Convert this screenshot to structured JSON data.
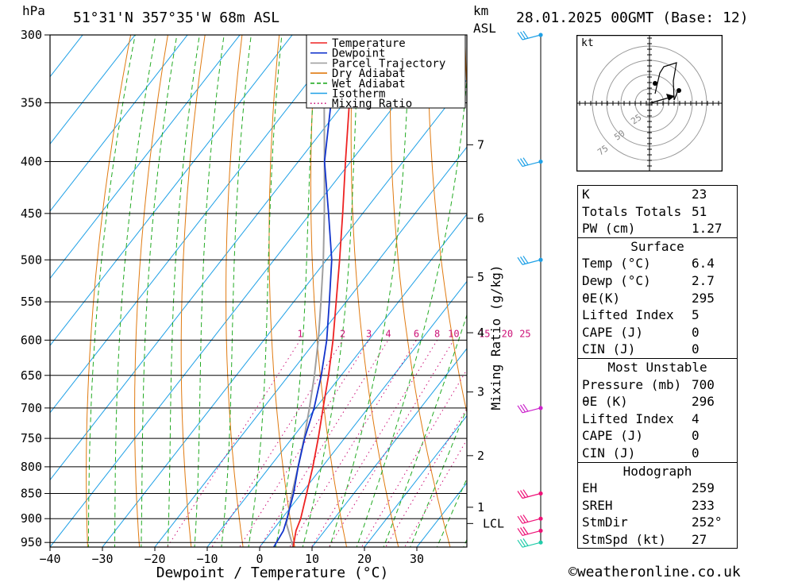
{
  "header": {
    "hpa_label": "hPa",
    "location": "51°31'N  357°35'W  68m  ASL",
    "km_label": "km",
    "asl_label": "ASL",
    "datetime": "28.01.2025  00GMT  (Base: 12)"
  },
  "chart_data": {
    "type": "line",
    "title": "Skew-T log-P diagram",
    "xlabel": "Dewpoint / Temperature (°C)",
    "ylabel": "hPa",
    "x_ticks": [
      -40,
      -30,
      -20,
      -10,
      0,
      10,
      20,
      30
    ],
    "xlim": [
      -40,
      40
    ],
    "ylim": [
      960,
      300
    ],
    "pressure_levels": [
      300,
      350,
      400,
      450,
      500,
      550,
      600,
      650,
      700,
      750,
      800,
      850,
      900,
      950
    ],
    "km_ticks": [
      {
        "label": "1",
        "p": 877
      },
      {
        "label": "2",
        "p": 780
      },
      {
        "label": "3",
        "p": 675
      },
      {
        "label": "4",
        "p": 590
      },
      {
        "label": "5",
        "p": 520
      },
      {
        "label": "6",
        "p": 455
      },
      {
        "label": "7",
        "p": 385
      }
    ],
    "lcl": {
      "label": "LCL",
      "p": 910
    },
    "mixing_ratio_axis_label": "Mixing Ratio (g/kg)",
    "mixing_ratios": [
      1,
      2,
      3,
      4,
      6,
      8,
      10,
      15,
      20,
      25
    ],
    "legend": [
      {
        "name": "Temperature",
        "color": "#ee2222"
      },
      {
        "name": "Dewpoint",
        "color": "#1133cc"
      },
      {
        "name": "Parcel Trajectory",
        "color": "#a0a0a0"
      },
      {
        "name": "Dry Adiabat",
        "color": "#e07a10"
      },
      {
        "name": "Wet Adiabat",
        "color": "#22aa22"
      },
      {
        "name": "Isotherm",
        "color": "#1ea0e6"
      },
      {
        "name": "Mixing Ratio",
        "color": "#cc1177"
      }
    ],
    "series": [
      {
        "name": "Temperature",
        "points": [
          [
            960,
            6.4
          ],
          [
            925,
            4.5
          ],
          [
            900,
            3.6
          ],
          [
            850,
            1.0
          ],
          [
            800,
            -1.8
          ],
          [
            750,
            -5.0
          ],
          [
            700,
            -8.6
          ],
          [
            650,
            -12.4
          ],
          [
            600,
            -16.8
          ],
          [
            550,
            -21.9
          ],
          [
            500,
            -27.5
          ],
          [
            450,
            -33.8
          ],
          [
            400,
            -41.0
          ],
          [
            350,
            -49.0
          ],
          [
            300,
            -56.0
          ]
        ]
      },
      {
        "name": "Dewpoint",
        "points": [
          [
            960,
            2.7
          ],
          [
            925,
            2.1
          ],
          [
            900,
            1.0
          ],
          [
            850,
            -1.5
          ],
          [
            800,
            -4.6
          ],
          [
            750,
            -7.6
          ],
          [
            700,
            -10.3
          ],
          [
            650,
            -13.8
          ],
          [
            600,
            -18.0
          ],
          [
            550,
            -23.2
          ],
          [
            500,
            -29.0
          ],
          [
            450,
            -36.5
          ],
          [
            400,
            -45.0
          ],
          [
            350,
            -52.5
          ],
          [
            300,
            -66.0
          ]
        ]
      },
      {
        "name": "Parcel Trajectory",
        "points": [
          [
            960,
            6.4
          ],
          [
            910,
            1.6
          ],
          [
            850,
            -1.8
          ],
          [
            800,
            -4.6
          ],
          [
            750,
            -7.7
          ],
          [
            700,
            -11.2
          ],
          [
            650,
            -15.1
          ],
          [
            600,
            -19.6
          ],
          [
            550,
            -24.8
          ],
          [
            500,
            -30.6
          ],
          [
            450,
            -37.3
          ],
          [
            400,
            -45.0
          ],
          [
            350,
            -53.8
          ],
          [
            300,
            -64.0
          ]
        ]
      }
    ],
    "wind_barbs": [
      {
        "p": 300,
        "color": "#1ea0e6"
      },
      {
        "p": 400,
        "color": "#1ea0e6"
      },
      {
        "p": 500,
        "color": "#1ea0e6"
      },
      {
        "p": 700,
        "color": "#cc22cc"
      },
      {
        "p": 850,
        "color": "#ee1177"
      },
      {
        "p": 900,
        "color": "#ee1177"
      },
      {
        "p": 925,
        "color": "#ee1177"
      },
      {
        "p": 950,
        "color": "#22ccaa"
      }
    ]
  },
  "hodograph": {
    "unit_label": "kt",
    "ring_labels": [
      "25",
      "50",
      "75"
    ]
  },
  "indices": {
    "basic": [
      {
        "label": "K",
        "value": "23"
      },
      {
        "label": "Totals Totals",
        "value": "51"
      },
      {
        "label": "PW (cm)",
        "value": "1.27"
      }
    ],
    "surface_title": "Surface",
    "surface": [
      {
        "label": "Temp (°C)",
        "value": "6.4"
      },
      {
        "label": "Dewp (°C)",
        "value": "2.7"
      },
      {
        "label": "θE(K)",
        "value": "295"
      },
      {
        "label": "Lifted Index",
        "value": "5"
      },
      {
        "label": "CAPE (J)",
        "value": "0"
      },
      {
        "label": "CIN (J)",
        "value": "0"
      }
    ],
    "unstable_title": "Most Unstable",
    "unstable": [
      {
        "label": "Pressure (mb)",
        "value": "700"
      },
      {
        "label": "θE (K)",
        "value": "296"
      },
      {
        "label": "Lifted Index",
        "value": "4"
      },
      {
        "label": "CAPE (J)",
        "value": "0"
      },
      {
        "label": "CIN (J)",
        "value": "0"
      }
    ],
    "hodo_title": "Hodograph",
    "hodo": [
      {
        "label": "EH",
        "value": "259"
      },
      {
        "label": "SREH",
        "value": "233"
      },
      {
        "label": "StmDir",
        "value": "252°"
      },
      {
        "label": "StmSpd (kt)",
        "value": "27"
      }
    ]
  },
  "footer": {
    "copyright": "©weatheronline.co.uk"
  }
}
